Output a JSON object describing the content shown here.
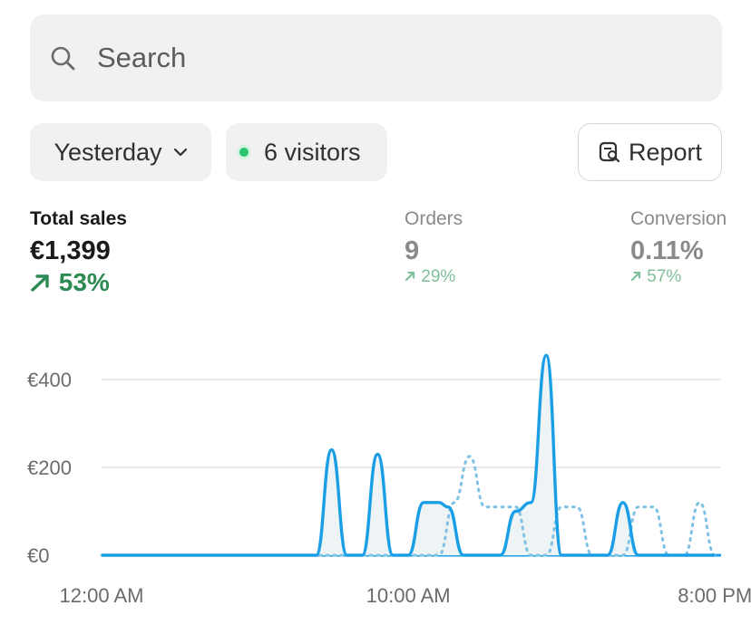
{
  "search": {
    "placeholder": "Search",
    "icon": "search-icon"
  },
  "filters": {
    "period_label": "Yesterday",
    "visitors_label": "6 visitors",
    "report_label": "Report"
  },
  "metrics": [
    {
      "label": "Total sales",
      "value": "€1,399",
      "change": "53%"
    },
    {
      "label": "Orders",
      "value": "9",
      "change": "29%"
    },
    {
      "label": "Conversion",
      "value": "0.11%",
      "change": "57%"
    }
  ],
  "colors": {
    "accent": "#1a9fe6",
    "comparison": "#7ec2e6",
    "positive": "#2d8a52",
    "positive_muted": "#7fbf99",
    "live_dot": "#29c56f"
  },
  "chart_data": {
    "type": "line",
    "ylim": [
      0,
      460
    ],
    "ytick_values": [
      0,
      200,
      400
    ],
    "yticks": [
      "€0",
      "€200",
      "€400"
    ],
    "xticks": [
      "12:00 AM",
      "10:00 AM",
      "8:00 PM"
    ],
    "xtick_hours": [
      0,
      10,
      20
    ],
    "grid": true,
    "series": [
      {
        "x": [
          0,
          3,
          6,
          7,
          7.5,
          8,
          8.5,
          9,
          9.5,
          10,
          10.5,
          11,
          11.3,
          11.8,
          12.3,
          13,
          13.5,
          14,
          14.5,
          15,
          15.5,
          16,
          16.5,
          17,
          17.5,
          18,
          20
        ],
        "values": [
          0,
          0,
          0,
          0,
          240,
          0,
          0,
          230,
          0,
          0,
          120,
          120,
          110,
          0,
          0,
          0,
          100,
          120,
          455,
          0,
          0,
          0,
          0,
          120,
          0,
          0,
          0
        ]
      },
      {
        "x": [
          0,
          3,
          6,
          7,
          8,
          9,
          10,
          11,
          11.5,
          12,
          12.5,
          13,
          13.5,
          14,
          14.5,
          15,
          15.5,
          16,
          16.5,
          17,
          17.5,
          18,
          18.5,
          19,
          19.5,
          20
        ],
        "values": [
          0,
          0,
          0,
          0,
          0,
          0,
          0,
          0,
          120,
          225,
          110,
          110,
          110,
          0,
          0,
          110,
          110,
          0,
          0,
          0,
          110,
          110,
          0,
          0,
          120,
          0
        ]
      }
    ]
  }
}
